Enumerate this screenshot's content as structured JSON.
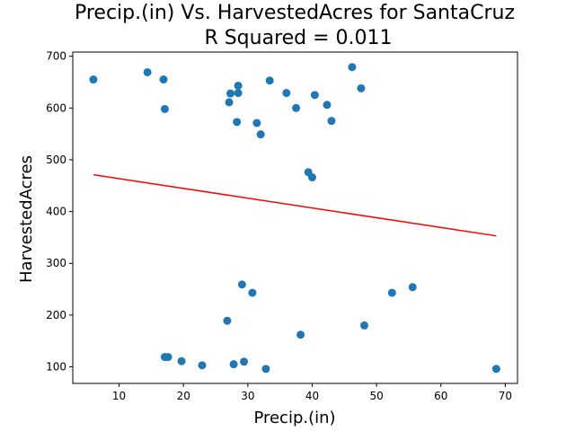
{
  "chart_data": {
    "type": "scatter",
    "title": "Precip.(in) Vs. HarvestedAcres for SantaCruz",
    "subtitle": "R Squared =  0.011",
    "xlabel": "Precip.(in)",
    "ylabel": "HarvestedAcres",
    "xlim": [
      2.8,
      71.9
    ],
    "ylim": [
      68,
      708
    ],
    "xticks": [
      10,
      20,
      30,
      40,
      50,
      60,
      70
    ],
    "yticks": [
      100,
      200,
      300,
      400,
      500,
      600,
      700
    ],
    "grid": false,
    "colors": {
      "points": "#1f77b4",
      "fit": "#ff0000"
    },
    "points": [
      [
        6.0,
        655
      ],
      [
        14.4,
        669
      ],
      [
        16.9,
        655
      ],
      [
        17.1,
        598
      ],
      [
        27.3,
        628
      ],
      [
        27.1,
        611
      ],
      [
        28.5,
        643
      ],
      [
        28.5,
        629
      ],
      [
        28.3,
        573
      ],
      [
        31.4,
        571
      ],
      [
        32.0,
        549
      ],
      [
        33.4,
        653
      ],
      [
        36.0,
        629
      ],
      [
        37.5,
        600
      ],
      [
        40.4,
        625
      ],
      [
        42.3,
        606
      ],
      [
        43.0,
        575
      ],
      [
        46.2,
        679
      ],
      [
        47.6,
        638
      ],
      [
        39.4,
        476
      ],
      [
        40.0,
        466
      ],
      [
        29.1,
        259
      ],
      [
        30.7,
        243
      ],
      [
        26.8,
        189
      ],
      [
        38.2,
        162
      ],
      [
        48.1,
        180
      ],
      [
        52.4,
        243
      ],
      [
        55.6,
        254
      ],
      [
        17.1,
        119
      ],
      [
        17.6,
        119
      ],
      [
        19.7,
        111
      ],
      [
        22.9,
        103
      ],
      [
        27.8,
        105
      ],
      [
        29.4,
        110
      ],
      [
        32.8,
        96
      ],
      [
        68.6,
        96
      ]
    ],
    "fit_line": {
      "x": [
        6.0,
        68.6
      ],
      "y": [
        471,
        353
      ]
    }
  }
}
